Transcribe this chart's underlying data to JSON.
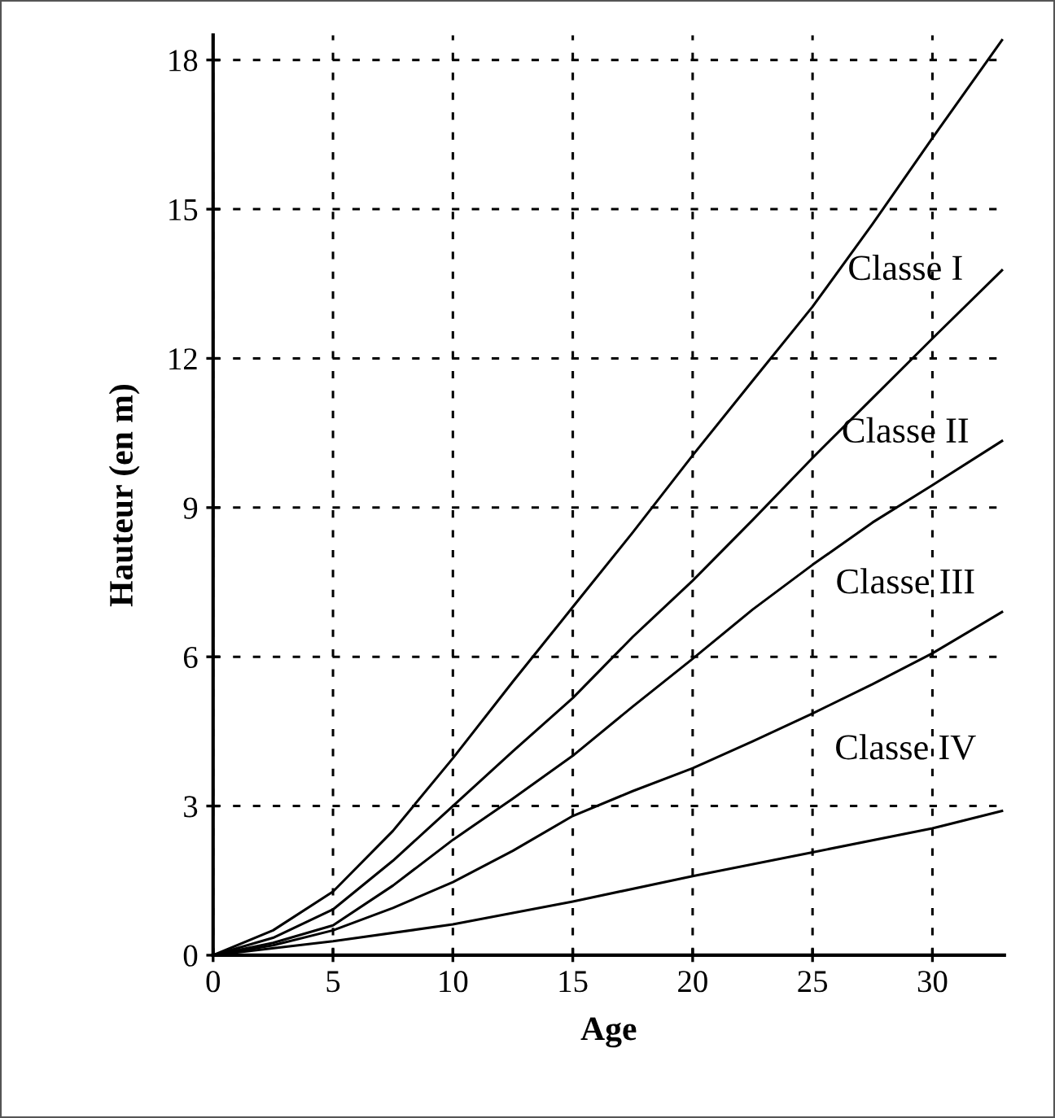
{
  "chart_data": {
    "type": "line",
    "xlabel": "Age",
    "ylabel": "Hauteur (en m)",
    "xlim": [
      0,
      33
    ],
    "ylim": [
      0,
      18.5
    ],
    "xticks": [
      0,
      5,
      10,
      15,
      20,
      25,
      30
    ],
    "yticks": [
      0,
      3,
      6,
      9,
      12,
      15,
      18
    ],
    "grid": true,
    "marker": "none",
    "line_style": "solid",
    "series": [
      {
        "color": "#000000",
        "x": [
          0,
          2.5,
          5,
          7.5,
          10,
          12.5,
          15,
          17.5,
          20,
          22.5,
          25,
          27.5,
          30,
          32.9
        ],
        "values": [
          0,
          0.5,
          1.28,
          2.5,
          3.96,
          5.5,
          7.0,
          8.5,
          10.05,
          11.55,
          13.04,
          14.7,
          16.43,
          18.4
        ]
      },
      {
        "color": "#000000",
        "x": [
          0,
          2.5,
          5,
          7.5,
          10,
          12.5,
          15,
          17.5,
          20,
          22.5,
          25,
          27.5,
          30,
          32.9
        ],
        "values": [
          0,
          0.35,
          0.92,
          1.9,
          3.0,
          4.1,
          5.17,
          6.4,
          7.53,
          8.75,
          10.0,
          11.2,
          12.4,
          13.77
        ]
      },
      {
        "color": "#000000",
        "x": [
          0,
          2.5,
          5,
          7.5,
          10,
          12.5,
          15,
          17.5,
          20,
          22.5,
          25,
          27.5,
          30,
          32.9
        ],
        "values": [
          0,
          0.25,
          0.6,
          1.4,
          2.32,
          3.15,
          4.01,
          5.0,
          5.96,
          6.95,
          7.85,
          8.7,
          9.45,
          10.34
        ]
      },
      {
        "color": "#000000",
        "x": [
          0,
          2.5,
          5,
          7.5,
          10,
          12.5,
          15,
          17.5,
          20,
          22.5,
          25,
          27.5,
          30,
          32.9
        ],
        "values": [
          0,
          0.2,
          0.5,
          0.95,
          1.47,
          2.1,
          2.8,
          3.3,
          3.76,
          4.3,
          4.86,
          5.45,
          6.07,
          6.9
        ]
      },
      {
        "color": "#000000",
        "x": [
          0,
          5,
          10,
          15,
          20,
          25,
          30,
          32.9
        ],
        "values": [
          0,
          0.28,
          0.62,
          1.08,
          1.59,
          2.07,
          2.55,
          2.9
        ]
      }
    ],
    "annotations": [
      "Classe I",
      "Classe II",
      "Classe III",
      "Classe IV"
    ]
  }
}
